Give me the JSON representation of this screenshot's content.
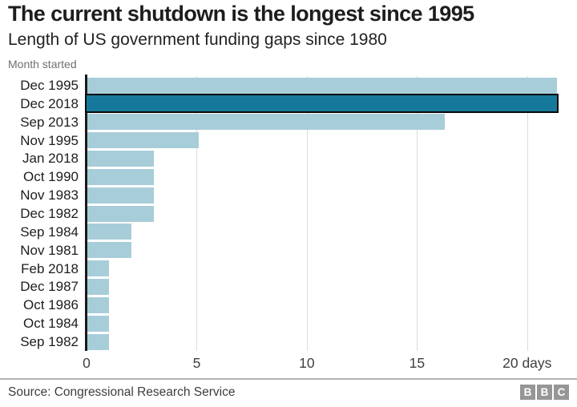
{
  "chart_data": {
    "type": "bar",
    "orientation": "horizontal",
    "title": "The current shutdown is the longest since 1995",
    "subtitle": "Length of US government funding gaps since 1980",
    "category_axis_label": "Month started",
    "categories": [
      "Dec 1995",
      "Dec 2018",
      "Sep 2013",
      "Nov 1995",
      "Jan 2018",
      "Oct 1990",
      "Nov 1983",
      "Dec 1982",
      "Sep 1984",
      "Nov 1981",
      "Feb 2018",
      "Dec 1987",
      "Oct 1986",
      "Oct 1984",
      "Sep 1982"
    ],
    "values": [
      21,
      21,
      16,
      5,
      3,
      3,
      3,
      3,
      2,
      2,
      1,
      1,
      1,
      1,
      1
    ],
    "unit": "days",
    "highlight_category": "Dec 2018",
    "x_ticks": [
      0,
      5,
      10,
      15,
      20
    ],
    "x_tick_labels": [
      "0",
      "5",
      "10",
      "15",
      "20 days"
    ],
    "xlim": [
      0,
      21.9
    ],
    "grid": true,
    "legend": "none",
    "colors": {
      "bar": "#a7cdd9",
      "highlight": "#16799c",
      "highlight_border": "#0a0a0a",
      "axis": "#1a1a1a",
      "gridline": "#dcdcdc"
    }
  },
  "footer": {
    "source": "Source: Congressional Research Service",
    "logo_letters": [
      "B",
      "B",
      "C"
    ]
  }
}
